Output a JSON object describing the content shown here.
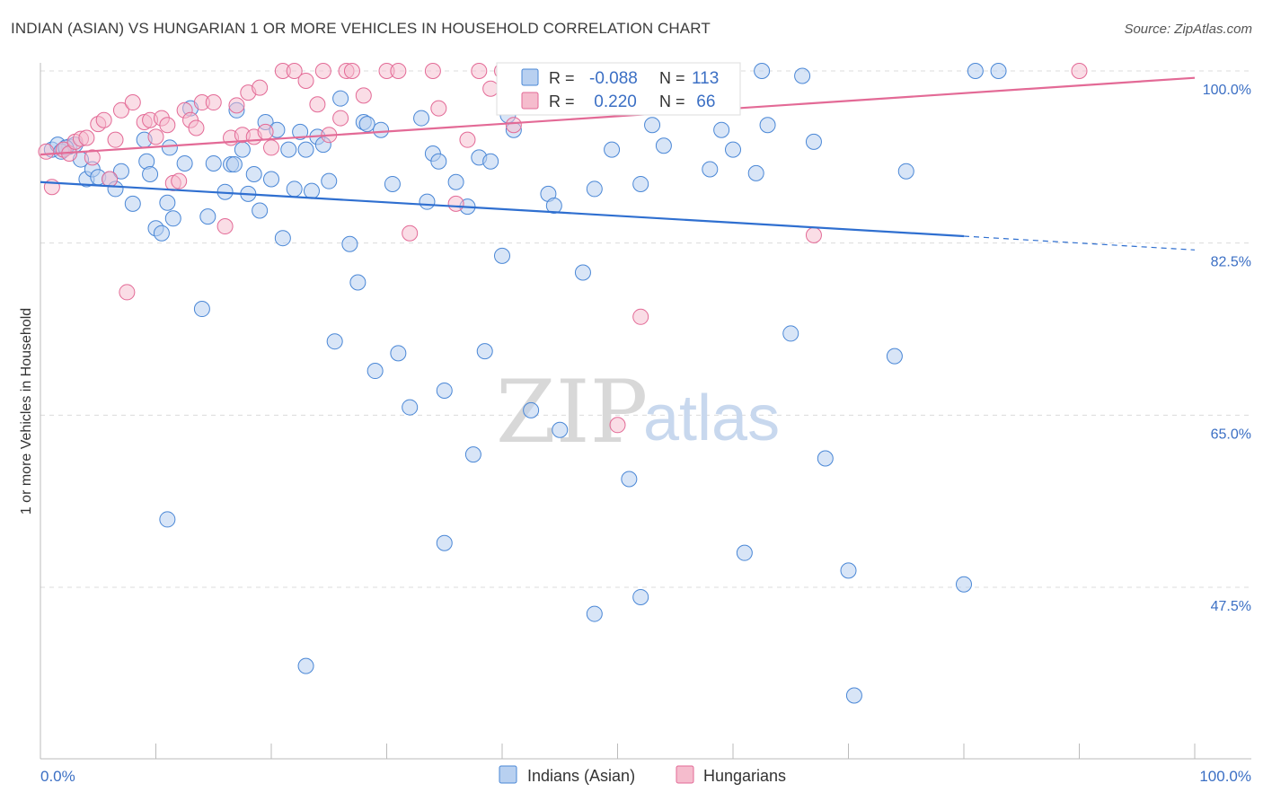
{
  "title": "INDIAN (ASIAN) VS HUNGARIAN 1 OR MORE VEHICLES IN HOUSEHOLD CORRELATION CHART",
  "source": "Source: ZipAtlas.com",
  "watermark": {
    "zip": "ZIP",
    "atlas": "atlas"
  },
  "colors": {
    "blue": "#4a87d6",
    "blue_fill": "#b8d0f0",
    "pink": "#e36a96",
    "pink_fill": "#f5bccd"
  },
  "legend_top": {
    "rows": [
      {
        "r_label": "R =",
        "r": "-0.088",
        "n_label": "N =",
        "n": "113"
      },
      {
        "r_label": "R =",
        "r": " 0.220",
        "n_label": "N =",
        "n": " 66"
      }
    ]
  },
  "chart_data": {
    "type": "scatter",
    "xlabel": "",
    "ylabel": "1 or more Vehicles in Household",
    "xlim": [
      0,
      100
    ],
    "ylim": [
      35,
      100
    ],
    "x_tick_labels": [
      "0.0%",
      "100.0%"
    ],
    "y_ticks": [
      100.0,
      82.5,
      65.0,
      47.5
    ],
    "y_tick_labels": [
      "100.0%",
      "82.5%",
      "65.0%",
      "47.5%"
    ],
    "grid": true,
    "legend": "bottom-center",
    "series": [
      {
        "name": "Indians (Asian)",
        "color": "#4a87d6",
        "r": -0.088,
        "n": 113,
        "trend": {
          "x0": 0,
          "y0": 88.7,
          "x1": 80,
          "y1": 83.2,
          "dashed_to": 100,
          "dashed_y": 81.8
        },
        "points": [
          [
            1,
            92
          ],
          [
            1.5,
            92.5
          ],
          [
            2,
            92
          ],
          [
            2.5,
            92.3
          ],
          [
            3,
            92.5
          ],
          [
            1.8,
            91.8
          ],
          [
            2.2,
            92.2
          ],
          [
            3.5,
            91
          ],
          [
            4,
            89
          ],
          [
            4.5,
            90
          ],
          [
            5,
            89.2
          ],
          [
            6,
            89
          ],
          [
            6.5,
            88
          ],
          [
            7,
            89.8
          ],
          [
            8,
            86.5
          ],
          [
            9,
            93
          ],
          [
            9.2,
            90.8
          ],
          [
            9.5,
            89.5
          ],
          [
            10,
            84
          ],
          [
            10.5,
            83.5
          ],
          [
            11,
            86.6
          ],
          [
            11.5,
            85
          ],
          [
            12.5,
            90.6
          ],
          [
            13,
            96.2
          ],
          [
            14,
            75.8
          ],
          [
            14.5,
            85.2
          ],
          [
            15,
            90.6
          ],
          [
            16,
            87.7
          ],
          [
            16.5,
            90.5
          ],
          [
            16.8,
            90.5
          ],
          [
            17,
            96
          ],
          [
            18,
            87.5
          ],
          [
            18.5,
            89.5
          ],
          [
            19,
            85.8
          ],
          [
            19.5,
            94.8
          ],
          [
            20,
            89
          ],
          [
            20.5,
            94
          ],
          [
            21,
            83
          ],
          [
            21.5,
            92
          ],
          [
            22,
            88
          ],
          [
            22.5,
            93.8
          ],
          [
            23,
            92
          ],
          [
            23.5,
            87.8
          ],
          [
            24,
            93.3
          ],
          [
            24.5,
            92.5
          ],
          [
            25,
            88.8
          ],
          [
            25.5,
            72.5
          ],
          [
            26,
            97.2
          ],
          [
            26.8,
            82.4
          ],
          [
            27.5,
            78.5
          ],
          [
            28,
            94.8
          ],
          [
            28.3,
            94.6
          ],
          [
            29,
            69.5
          ],
          [
            29.5,
            94
          ],
          [
            30.5,
            88.5
          ],
          [
            31,
            71.3
          ],
          [
            32,
            65.8
          ],
          [
            33,
            95.2
          ],
          [
            33.5,
            86.7
          ],
          [
            34,
            91.6
          ],
          [
            34.5,
            90.8
          ],
          [
            35,
            67.5
          ],
          [
            36,
            88.7
          ],
          [
            37,
            86.2
          ],
          [
            38,
            91.2
          ],
          [
            38.5,
            71.5
          ],
          [
            39,
            90.8
          ],
          [
            40,
            81.2
          ],
          [
            40.5,
            95.5
          ],
          [
            41,
            94
          ],
          [
            42.5,
            65.5
          ],
          [
            43,
            98.1
          ],
          [
            44,
            87.5
          ],
          [
            44.5,
            86.3
          ],
          [
            45.5,
            100
          ],
          [
            46,
            98.2
          ],
          [
            47,
            79.5
          ],
          [
            48,
            88
          ],
          [
            49.5,
            92
          ],
          [
            50,
            97.5
          ],
          [
            51,
            58.5
          ],
          [
            52,
            88.5
          ],
          [
            53,
            94.5
          ],
          [
            53.5,
            98.2
          ],
          [
            54,
            92.4
          ],
          [
            55,
            97.5
          ],
          [
            56,
            98.7
          ],
          [
            57,
            99.2
          ],
          [
            58,
            90
          ],
          [
            59,
            94
          ],
          [
            60,
            92
          ],
          [
            61,
            51
          ],
          [
            62,
            89.6
          ],
          [
            63,
            94.5
          ],
          [
            65,
            73.3
          ],
          [
            66,
            99.5
          ],
          [
            67,
            92.8
          ],
          [
            68,
            60.6
          ],
          [
            70,
            49.2
          ],
          [
            70.5,
            36.5
          ],
          [
            75,
            89.8
          ],
          [
            80,
            47.8
          ],
          [
            81,
            100
          ],
          [
            83,
            100
          ],
          [
            35,
            52
          ],
          [
            11,
            54.4
          ],
          [
            23,
            39.5
          ],
          [
            52,
            46.5
          ],
          [
            48,
            44.8
          ],
          [
            74,
            71
          ],
          [
            37.5,
            61
          ],
          [
            45,
            63.5
          ],
          [
            62.5,
            100
          ],
          [
            17.5,
            92
          ],
          [
            11.2,
            92.2
          ]
        ]
      },
      {
        "name": "Hungarians",
        "color": "#e36a96",
        "r": 0.22,
        "n": 66,
        "trend": {
          "x0": 0,
          "y0": 91.5,
          "x1": 100,
          "y1": 99.3
        },
        "points": [
          [
            0.5,
            91.8
          ],
          [
            1,
            88.2
          ],
          [
            2,
            92
          ],
          [
            2.5,
            91.6
          ],
          [
            3,
            92.8
          ],
          [
            3.5,
            93.1
          ],
          [
            4,
            93.2
          ],
          [
            4.5,
            91.2
          ],
          [
            5,
            94.6
          ],
          [
            5.5,
            95
          ],
          [
            6,
            89
          ],
          [
            6.5,
            93
          ],
          [
            7,
            96
          ],
          [
            7.5,
            77.5
          ],
          [
            8,
            96.8
          ],
          [
            9,
            94.8
          ],
          [
            9.5,
            95
          ],
          [
            10,
            93.3
          ],
          [
            10.5,
            95.2
          ],
          [
            11,
            94.5
          ],
          [
            11.5,
            88.6
          ],
          [
            12,
            88.8
          ],
          [
            12.5,
            96
          ],
          [
            13,
            95
          ],
          [
            13.5,
            94.2
          ],
          [
            14,
            96.8
          ],
          [
            15,
            96.8
          ],
          [
            16,
            84.2
          ],
          [
            16.5,
            93.2
          ],
          [
            17,
            96.5
          ],
          [
            17.5,
            93.5
          ],
          [
            18,
            97.8
          ],
          [
            18.5,
            93.3
          ],
          [
            19,
            98.3
          ],
          [
            19.5,
            93.8
          ],
          [
            20,
            92.2
          ],
          [
            21,
            100
          ],
          [
            22,
            100
          ],
          [
            23,
            99
          ],
          [
            24,
            96.6
          ],
          [
            24.5,
            100
          ],
          [
            25,
            93.5
          ],
          [
            26,
            95.2
          ],
          [
            26.5,
            100
          ],
          [
            27,
            100
          ],
          [
            28,
            97.5
          ],
          [
            30,
            100
          ],
          [
            31,
            100
          ],
          [
            32,
            83.5
          ],
          [
            34,
            100
          ],
          [
            34.5,
            96.2
          ],
          [
            36,
            86.5
          ],
          [
            37,
            93
          ],
          [
            38,
            100
          ],
          [
            39,
            98.2
          ],
          [
            40,
            100
          ],
          [
            41,
            94.5
          ],
          [
            42,
            99.3
          ],
          [
            43,
            100
          ],
          [
            45,
            100
          ],
          [
            46,
            100
          ],
          [
            50,
            64
          ],
          [
            52,
            75
          ],
          [
            58,
            100
          ],
          [
            67,
            83.3
          ],
          [
            90,
            100
          ]
        ]
      }
    ]
  },
  "legend_bottom": [
    "Indians (Asian)",
    "Hungarians"
  ]
}
